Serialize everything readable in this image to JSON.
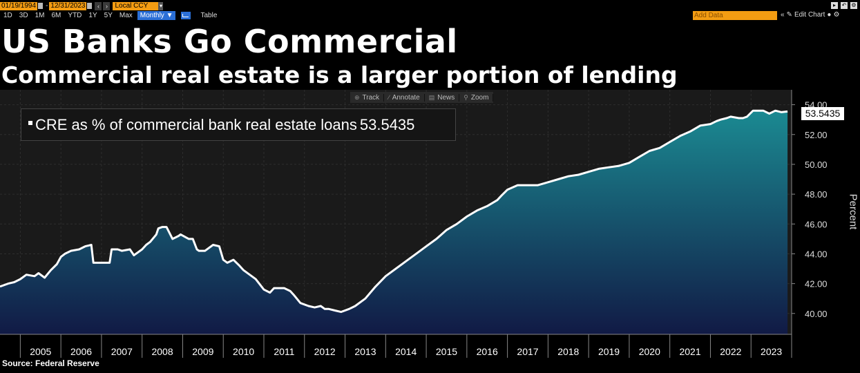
{
  "toolbar": {
    "start_date": "01/19/1994",
    "end_date": "12/31/2023",
    "currency": "Local CCY",
    "periods": [
      "1D",
      "3D",
      "1M",
      "6M",
      "YTD",
      "1Y",
      "5Y",
      "Max"
    ],
    "frequency": "Monthly ▼",
    "table_label": "Table",
    "add_data_placeholder": "Add Data",
    "edit_chart_label": "Edit Chart",
    "chart_tools": [
      "Track",
      "Annotate",
      "News",
      "Zoom"
    ]
  },
  "title": "US Banks Go Commercial",
  "subtitle": "Commercial real estate is a larger portion of lending",
  "legend": {
    "label": "CRE as % of commercial bank real estate loans",
    "value": "53.5435"
  },
  "last_value": "53.5435",
  "source": "Source: Federal Reserve",
  "colors": {
    "line": "#ffffff",
    "area_top": "#1b8a92",
    "area_bottom": "#111a45",
    "plot_bg": "#1a1a1a",
    "accent": "#f39c12"
  },
  "chart_data": {
    "type": "area",
    "title": "US Banks Go Commercial",
    "subtitle": "Commercial real estate is a larger portion of lending",
    "xlabel": "",
    "ylabel": "Percent",
    "ylim": [
      38.6,
      55.0
    ],
    "xlim": [
      2004.5,
      2024.0
    ],
    "y_ticks": [
      "40.00",
      "42.00",
      "44.00",
      "46.00",
      "48.00",
      "50.00",
      "52.00",
      "54.00"
    ],
    "x_ticks": [
      "2005",
      "2006",
      "2007",
      "2008",
      "2009",
      "2010",
      "2011",
      "2012",
      "2013",
      "2014",
      "2015",
      "2016",
      "2017",
      "2018",
      "2019",
      "2020",
      "2021",
      "2022",
      "2023"
    ],
    "grid": true,
    "series": [
      {
        "name": "CRE as % of commercial bank real estate loans",
        "x": [
          2004.5,
          2004.7,
          2004.85,
          2005.0,
          2005.15,
          2005.35,
          2005.45,
          2005.6,
          2005.75,
          2005.9,
          2006.0,
          2006.1,
          2006.25,
          2006.45,
          2006.6,
          2006.75,
          2006.8,
          2007.0,
          2007.2,
          2007.25,
          2007.4,
          2007.5,
          2007.7,
          2007.8,
          2008.0,
          2008.1,
          2008.2,
          2008.35,
          2008.4,
          2008.5,
          2008.6,
          2008.75,
          2008.9,
          2008.95,
          2009.15,
          2009.25,
          2009.35,
          2009.4,
          2009.55,
          2009.75,
          2009.9,
          2010.0,
          2010.1,
          2010.25,
          2010.4,
          2010.5,
          2010.7,
          2010.8,
          2011.0,
          2011.15,
          2011.25,
          2011.4,
          2011.5,
          2011.65,
          2011.75,
          2011.9,
          2012.1,
          2012.25,
          2012.4,
          2012.5,
          2012.6,
          2012.75,
          2012.9,
          2013.1,
          2013.25,
          2013.5,
          2013.75,
          2014.0,
          2014.25,
          2014.5,
          2014.75,
          2015.0,
          2015.25,
          2015.5,
          2015.75,
          2016.0,
          2016.25,
          2016.5,
          2016.75,
          2016.85,
          2017.0,
          2017.25,
          2017.5,
          2017.75,
          2018.0,
          2018.25,
          2018.5,
          2018.75,
          2019.0,
          2019.25,
          2019.5,
          2019.75,
          2020.0,
          2020.25,
          2020.5,
          2020.75,
          2021.0,
          2021.25,
          2021.5,
          2021.75,
          2022.0,
          2022.15,
          2022.25,
          2022.4,
          2022.5,
          2022.7,
          2022.8,
          2022.9,
          2023.05,
          2023.15,
          2023.3,
          2023.45,
          2023.6,
          2023.75,
          2023.9
        ],
        "y": [
          41.8,
          42.0,
          42.1,
          42.3,
          42.6,
          42.5,
          42.7,
          42.4,
          42.9,
          43.3,
          43.8,
          44.0,
          44.2,
          44.3,
          44.5,
          44.6,
          43.4,
          43.4,
          43.4,
          44.3,
          44.3,
          44.2,
          44.3,
          43.9,
          44.3,
          44.6,
          44.8,
          45.3,
          45.7,
          45.8,
          45.8,
          45.0,
          45.2,
          45.3,
          45.0,
          45.0,
          44.3,
          44.2,
          44.2,
          44.6,
          44.5,
          43.6,
          43.4,
          43.6,
          43.2,
          42.9,
          42.5,
          42.3,
          41.6,
          41.4,
          41.7,
          41.7,
          41.7,
          41.5,
          41.2,
          40.7,
          40.5,
          40.4,
          40.5,
          40.3,
          40.3,
          40.2,
          40.1,
          40.3,
          40.5,
          41.0,
          41.8,
          42.5,
          43.0,
          43.5,
          44.0,
          44.5,
          45.0,
          45.6,
          46.0,
          46.5,
          46.9,
          47.2,
          47.6,
          47.9,
          48.3,
          48.6,
          48.6,
          48.6,
          48.8,
          49.0,
          49.2,
          49.3,
          49.5,
          49.7,
          49.8,
          49.9,
          50.1,
          50.5,
          50.9,
          51.1,
          51.5,
          51.9,
          52.2,
          52.6,
          52.7,
          52.9,
          53.0,
          53.1,
          53.2,
          53.1,
          53.1,
          53.2,
          53.6,
          53.6,
          53.6,
          53.4,
          53.6,
          53.5,
          53.5435
        ]
      }
    ]
  }
}
